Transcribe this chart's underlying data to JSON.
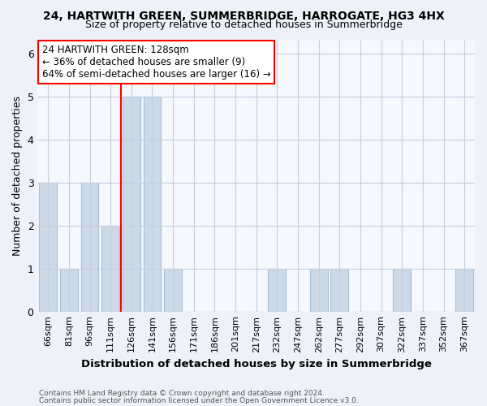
{
  "title": "24, HARTWITH GREEN, SUMMERBRIDGE, HARROGATE, HG3 4HX",
  "subtitle": "Size of property relative to detached houses in Summerbridge",
  "xlabel": "Distribution of detached houses by size in Summerbridge",
  "ylabel": "Number of detached properties",
  "categories": [
    "66sqm",
    "81sqm",
    "96sqm",
    "111sqm",
    "126sqm",
    "141sqm",
    "156sqm",
    "171sqm",
    "186sqm",
    "201sqm",
    "217sqm",
    "232sqm",
    "247sqm",
    "262sqm",
    "277sqm",
    "292sqm",
    "307sqm",
    "322sqm",
    "337sqm",
    "352sqm",
    "367sqm"
  ],
  "values": [
    3,
    1,
    3,
    2,
    5,
    5,
    1,
    0,
    0,
    0,
    0,
    1,
    0,
    1,
    1,
    0,
    0,
    1,
    0,
    0,
    1
  ],
  "bar_color": "#ccd9e8",
  "bar_edge_color": "#a8bfd4",
  "highlight_line_idx": 4,
  "annotation_line1": "24 HARTWITH GREEN: 128sqm",
  "annotation_line2": "← 36% of detached houses are smaller (9)",
  "annotation_line3": "64% of semi-detached houses are larger (16) →",
  "annotation_box_color": "white",
  "annotation_box_edge_color": "red",
  "ylim": [
    0,
    6.3
  ],
  "yticks": [
    0,
    1,
    2,
    3,
    4,
    5,
    6
  ],
  "footer1": "Contains HM Land Registry data © Crown copyright and database right 2024.",
  "footer2": "Contains public sector information licensed under the Open Government Licence v3.0.",
  "bg_color": "#eef2f8",
  "plot_bg_color": "#f5f8fd",
  "grid_color": "#c5cfe0"
}
